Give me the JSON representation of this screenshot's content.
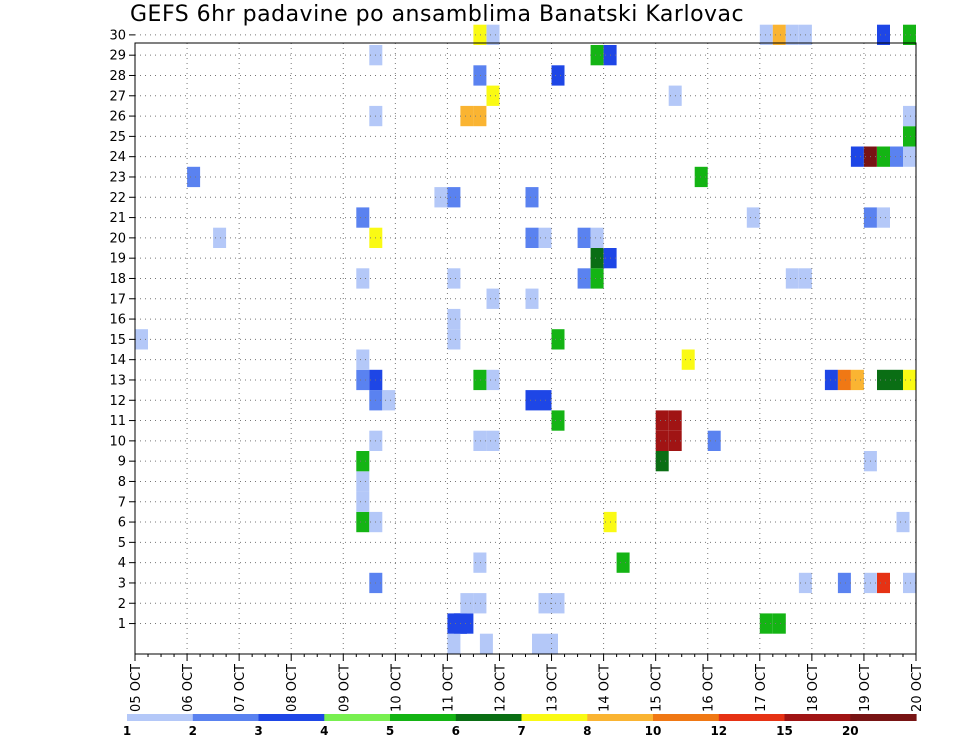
{
  "title": "GEFS 6hr padavine po ansamblima Banatski Karlovac",
  "chart_data": {
    "type": "heatmap",
    "title": "GEFS 6hr padavine po ansamblima Banatski Karlovac",
    "x_label": "",
    "y_label": "",
    "x_tick_labels": [
      "05 OCT",
      "06 OCT",
      "07 OCT",
      "08 OCT",
      "09 OCT",
      "10 OCT",
      "11 OCT",
      "12 OCT",
      "13 OCT",
      "14 OCT",
      "15 OCT",
      "16 OCT",
      "17 OCT",
      "18 OCT",
      "19 OCT",
      "20 OCT"
    ],
    "y_tick_labels": [
      1,
      2,
      3,
      4,
      5,
      6,
      7,
      8,
      9,
      10,
      11,
      12,
      13,
      14,
      15,
      16,
      17,
      18,
      19,
      20,
      21,
      22,
      23,
      24,
      25,
      26,
      27,
      28,
      29,
      30
    ],
    "x_range_days": [
      0,
      15
    ],
    "y_range": [
      0,
      30
    ],
    "grid": "dotted",
    "legend": {
      "position": "bottom",
      "levels": [
        1,
        2,
        3,
        4,
        5,
        6,
        7,
        8,
        10,
        12,
        15,
        20
      ],
      "labels": [
        "1",
        "2",
        "3",
        "4",
        "5",
        "6",
        "7",
        "8",
        "10",
        "12",
        "15",
        "20"
      ],
      "colors": [
        "#b4c8f8",
        "#5a82f0",
        "#1e46e6",
        "#78f050",
        "#14b414",
        "#0a6e14",
        "#fafa14",
        "#fab432",
        "#f07814",
        "#e63214",
        "#a01414",
        "#781414"
      ]
    },
    "cells": [
      {
        "day": 6.25,
        "member": 1,
        "bin": 3
      },
      {
        "day": 6.25,
        "member": 1,
        "bin": 3
      },
      {
        "day": 6.125,
        "member": 0,
        "bin": 1
      },
      {
        "day": 6.75,
        "member": 0,
        "bin": 1
      },
      {
        "day": 7.75,
        "member": 0,
        "bin": 1
      },
      {
        "day": 8.0,
        "member": 0,
        "bin": 1
      },
      {
        "day": 6.125,
        "member": 1,
        "bin": 3
      },
      {
        "day": 6.375,
        "member": 1,
        "bin": 3
      },
      {
        "day": 12.125,
        "member": 1,
        "bin": 5
      },
      {
        "day": 12.375,
        "member": 1,
        "bin": 5
      },
      {
        "day": 6.375,
        "member": 2,
        "bin": 1
      },
      {
        "day": 6.625,
        "member": 2,
        "bin": 1
      },
      {
        "day": 7.875,
        "member": 2,
        "bin": 1
      },
      {
        "day": 8.125,
        "member": 2,
        "bin": 1
      },
      {
        "day": 4.625,
        "member": 3,
        "bin": 2
      },
      {
        "day": 12.875,
        "member": 3,
        "bin": 1
      },
      {
        "day": 13.625,
        "member": 3,
        "bin": 2
      },
      {
        "day": 14.125,
        "member": 3,
        "bin": 1
      },
      {
        "day": 14.375,
        "member": 3,
        "bin": 10
      },
      {
        "day": 14.875,
        "member": 3,
        "bin": 1
      },
      {
        "day": 6.625,
        "member": 4,
        "bin": 1
      },
      {
        "day": 9.375,
        "member": 4,
        "bin": 5
      },
      {
        "day": 4.375,
        "member": 6,
        "bin": 5
      },
      {
        "day": 4.625,
        "member": 6,
        "bin": 1
      },
      {
        "day": 9.125,
        "member": 6,
        "bin": 7
      },
      {
        "day": 14.75,
        "member": 6,
        "bin": 1
      },
      {
        "day": 4.375,
        "member": 7,
        "bin": 1
      },
      {
        "day": 4.375,
        "member": 8,
        "bin": 1
      },
      {
        "day": 4.375,
        "member": 9,
        "bin": 5
      },
      {
        "day": 10.125,
        "member": 9,
        "bin": 6
      },
      {
        "day": 14.125,
        "member": 9,
        "bin": 1
      },
      {
        "day": 4.625,
        "member": 10,
        "bin": 1
      },
      {
        "day": 6.625,
        "member": 10,
        "bin": 1
      },
      {
        "day": 6.875,
        "member": 10,
        "bin": 1
      },
      {
        "day": 10.125,
        "member": 10,
        "bin": 11
      },
      {
        "day": 10.375,
        "member": 10,
        "bin": 11
      },
      {
        "day": 11.125,
        "member": 10,
        "bin": 2
      },
      {
        "day": 10.125,
        "member": 11,
        "bin": 11
      },
      {
        "day": 10.375,
        "member": 11,
        "bin": 11
      },
      {
        "day": 8.125,
        "member": 11,
        "bin": 5
      },
      {
        "day": 4.625,
        "member": 12,
        "bin": 2
      },
      {
        "day": 4.875,
        "member": 12,
        "bin": 1
      },
      {
        "day": 7.625,
        "member": 12,
        "bin": 3
      },
      {
        "day": 7.875,
        "member": 12,
        "bin": 3
      },
      {
        "day": 4.375,
        "member": 13,
        "bin": 2
      },
      {
        "day": 4.625,
        "member": 13,
        "bin": 3
      },
      {
        "day": 6.625,
        "member": 13,
        "bin": 5
      },
      {
        "day": 6.875,
        "member": 13,
        "bin": 1
      },
      {
        "day": 13.375,
        "member": 13,
        "bin": 3
      },
      {
        "day": 13.625,
        "member": 13,
        "bin": 9
      },
      {
        "day": 13.875,
        "member": 13,
        "bin": 8
      },
      {
        "day": 14.375,
        "member": 13,
        "bin": 6
      },
      {
        "day": 14.625,
        "member": 13,
        "bin": 6
      },
      {
        "day": 14.875,
        "member": 13,
        "bin": 7
      },
      {
        "day": 4.375,
        "member": 14,
        "bin": 1
      },
      {
        "day": 10.625,
        "member": 14,
        "bin": 7
      },
      {
        "day": 8.125,
        "member": 15,
        "bin": 5
      },
      {
        "day": 0.125,
        "member": 15,
        "bin": 1
      },
      {
        "day": 6.125,
        "member": 15,
        "bin": 1
      },
      {
        "day": 6.125,
        "member": 16,
        "bin": 1
      },
      {
        "day": 6.875,
        "member": 17,
        "bin": 1
      },
      {
        "day": 7.625,
        "member": 17,
        "bin": 1
      },
      {
        "day": 4.375,
        "member": 18,
        "bin": 1
      },
      {
        "day": 6.125,
        "member": 18,
        "bin": 1
      },
      {
        "day": 8.625,
        "member": 18,
        "bin": 2
      },
      {
        "day": 8.875,
        "member": 18,
        "bin": 5
      },
      {
        "day": 12.625,
        "member": 18,
        "bin": 1
      },
      {
        "day": 12.875,
        "member": 18,
        "bin": 1
      },
      {
        "day": 8.875,
        "member": 19,
        "bin": 6
      },
      {
        "day": 9.125,
        "member": 19,
        "bin": 3
      },
      {
        "day": 4.625,
        "member": 20,
        "bin": 7
      },
      {
        "day": 1.625,
        "member": 20,
        "bin": 1
      },
      {
        "day": 7.625,
        "member": 20,
        "bin": 2
      },
      {
        "day": 7.875,
        "member": 20,
        "bin": 1
      },
      {
        "day": 8.625,
        "member": 20,
        "bin": 2
      },
      {
        "day": 8.875,
        "member": 20,
        "bin": 1
      },
      {
        "day": 4.375,
        "member": 21,
        "bin": 2
      },
      {
        "day": 11.875,
        "member": 21,
        "bin": 1
      },
      {
        "day": 14.125,
        "member": 21,
        "bin": 2
      },
      {
        "day": 14.375,
        "member": 21,
        "bin": 1
      },
      {
        "day": 5.875,
        "member": 22,
        "bin": 1
      },
      {
        "day": 6.125,
        "member": 22,
        "bin": 2
      },
      {
        "day": 7.625,
        "member": 22,
        "bin": 2
      },
      {
        "day": 1.125,
        "member": 23,
        "bin": 2
      },
      {
        "day": 10.875,
        "member": 23,
        "bin": 5
      },
      {
        "day": 13.875,
        "member": 24,
        "bin": 3
      },
      {
        "day": 14.125,
        "member": 24,
        "bin": 12
      },
      {
        "day": 14.375,
        "member": 24,
        "bin": 5
      },
      {
        "day": 14.625,
        "member": 24,
        "bin": 2
      },
      {
        "day": 14.875,
        "member": 24,
        "bin": 1
      },
      {
        "day": 14.875,
        "member": 25,
        "bin": 5
      },
      {
        "day": 4.625,
        "member": 26,
        "bin": 1
      },
      {
        "day": 6.375,
        "member": 26,
        "bin": 8
      },
      {
        "day": 6.625,
        "member": 26,
        "bin": 8
      },
      {
        "day": 14.875,
        "member": 26,
        "bin": 1
      },
      {
        "day": 6.875,
        "member": 27,
        "bin": 7
      },
      {
        "day": 10.375,
        "member": 27,
        "bin": 1
      },
      {
        "day": 6.625,
        "member": 28,
        "bin": 2
      },
      {
        "day": 8.125,
        "member": 28,
        "bin": 3
      },
      {
        "day": 4.625,
        "member": 29,
        "bin": 1
      },
      {
        "day": 8.875,
        "member": 29,
        "bin": 5
      },
      {
        "day": 9.125,
        "member": 29,
        "bin": 3
      },
      {
        "day": 6.625,
        "member": 30,
        "bin": 7
      },
      {
        "day": 6.875,
        "member": 30,
        "bin": 1
      },
      {
        "day": 12.125,
        "member": 30,
        "bin": 1
      },
      {
        "day": 12.375,
        "member": 30,
        "bin": 8
      },
      {
        "day": 12.625,
        "member": 30,
        "bin": 1
      },
      {
        "day": 12.875,
        "member": 30,
        "bin": 1
      },
      {
        "day": 14.375,
        "member": 30,
        "bin": 3
      },
      {
        "day": 14.875,
        "member": 30,
        "bin": 5
      }
    ]
  }
}
